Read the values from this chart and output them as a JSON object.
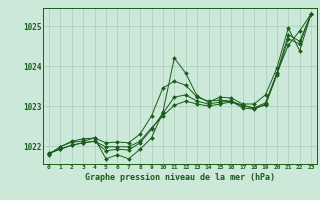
{
  "xlabel": "Graphe pression niveau de la mer (hPa)",
  "background_color": "#cce8d8",
  "grid_color": "#aaccbb",
  "line_color": "#1a5c1a",
  "ylim": [
    1021.55,
    1025.45
  ],
  "xlim": [
    -0.5,
    23.5
  ],
  "yticks": [
    1022,
    1023,
    1024,
    1025
  ],
  "xticks": [
    0,
    1,
    2,
    3,
    4,
    5,
    6,
    7,
    8,
    9,
    10,
    11,
    12,
    13,
    14,
    15,
    16,
    17,
    18,
    19,
    20,
    21,
    22,
    23
  ],
  "series": [
    [
      1021.78,
      1021.98,
      1022.1,
      1022.12,
      1022.2,
      1021.68,
      1021.78,
      1021.68,
      1021.92,
      1022.2,
      1022.85,
      1024.2,
      1023.82,
      1023.25,
      1023.1,
      1023.22,
      1023.2,
      1023.05,
      1023.05,
      1023.28,
      1023.95,
      1024.95,
      1024.38,
      1025.3
    ],
    [
      1021.8,
      1021.98,
      1022.12,
      1022.18,
      1022.2,
      1022.08,
      1022.1,
      1022.08,
      1022.3,
      1022.75,
      1023.45,
      1023.62,
      1023.52,
      1023.22,
      1023.12,
      1023.15,
      1023.12,
      1022.95,
      1022.92,
      1023.05,
      1023.82,
      1024.52,
      1024.88,
      1025.3
    ],
    [
      1021.82,
      1021.92,
      1022.02,
      1022.08,
      1022.12,
      1021.88,
      1021.92,
      1021.9,
      1022.08,
      1022.42,
      1022.82,
      1023.22,
      1023.28,
      1023.12,
      1023.05,
      1023.1,
      1023.12,
      1023.02,
      1022.95,
      1023.08,
      1023.82,
      1024.78,
      1024.62,
      1025.3
    ],
    [
      1021.82,
      1021.92,
      1022.02,
      1022.08,
      1022.12,
      1021.98,
      1021.98,
      1021.98,
      1022.12,
      1022.45,
      1022.75,
      1023.02,
      1023.12,
      1023.05,
      1023.0,
      1023.05,
      1023.1,
      1023.0,
      1022.95,
      1023.02,
      1023.78,
      1024.68,
      1024.55,
      1025.3
    ]
  ]
}
